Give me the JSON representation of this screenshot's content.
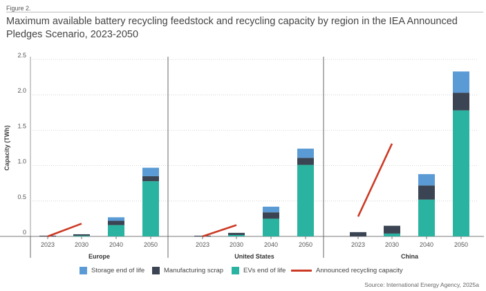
{
  "figure_label": "Figure 2.",
  "chart_data": {
    "type": "bar",
    "stacked": true,
    "title": "Maximum available battery recycling feedstock and recycling capacity by region in the IEA Announced Pledges Scenario, 2023-2050",
    "ylabel": "Capacity (TWh)",
    "ylim": [
      0,
      2.5
    ],
    "yticks": [
      0,
      0.5,
      1.0,
      1.5,
      2.0,
      2.5
    ],
    "ytick_labels": [
      "0",
      "0.5",
      "1.0",
      "1.5",
      "2.0",
      "2.5"
    ],
    "grid": "horizontal-dotted",
    "legend_position": "bottom",
    "categories": [
      "2023",
      "2030",
      "2040",
      "2050"
    ],
    "groups": [
      {
        "name": "Europe",
        "ev_end_of_life": [
          0.0,
          0.01,
          0.16,
          0.78
        ],
        "manufacturing_scrap": [
          0.01,
          0.02,
          0.06,
          0.07
        ],
        "storage_end_of_life": [
          0.0,
          0.0,
          0.05,
          0.12
        ],
        "announced_capacity": {
          "x": [
            "2023",
            "2030"
          ],
          "y": [
            0.0,
            0.18
          ]
        }
      },
      {
        "name": "United States",
        "ev_end_of_life": [
          0.0,
          0.02,
          0.25,
          1.01
        ],
        "manufacturing_scrap": [
          0.01,
          0.03,
          0.09,
          0.1
        ],
        "storage_end_of_life": [
          0.0,
          0.0,
          0.08,
          0.13
        ],
        "announced_capacity": {
          "x": [
            "2023",
            "2030"
          ],
          "y": [
            0.0,
            0.16
          ]
        }
      },
      {
        "name": "China",
        "ev_end_of_life": [
          0.0,
          0.04,
          0.52,
          1.78
        ],
        "manufacturing_scrap": [
          0.06,
          0.11,
          0.2,
          0.25
        ],
        "storage_end_of_life": [
          0.0,
          0.0,
          0.16,
          0.3
        ],
        "announced_capacity": {
          "x": [
            "2023",
            "2030"
          ],
          "y": [
            0.28,
            1.31
          ]
        }
      }
    ],
    "series": [
      {
        "key": "storage_end_of_life",
        "name": "Storage end of life",
        "color": "#5b9bd5"
      },
      {
        "key": "manufacturing_scrap",
        "name": "Manufacturing scrap",
        "color": "#3a4452"
      },
      {
        "key": "ev_end_of_life",
        "name": "EVs end of life",
        "color": "#2ab3a0"
      },
      {
        "key": "announced_capacity",
        "name": "Announced recycling capacity",
        "color": "#cc3a25"
      }
    ]
  },
  "source": "Source: International Energy Agency, 2025a"
}
